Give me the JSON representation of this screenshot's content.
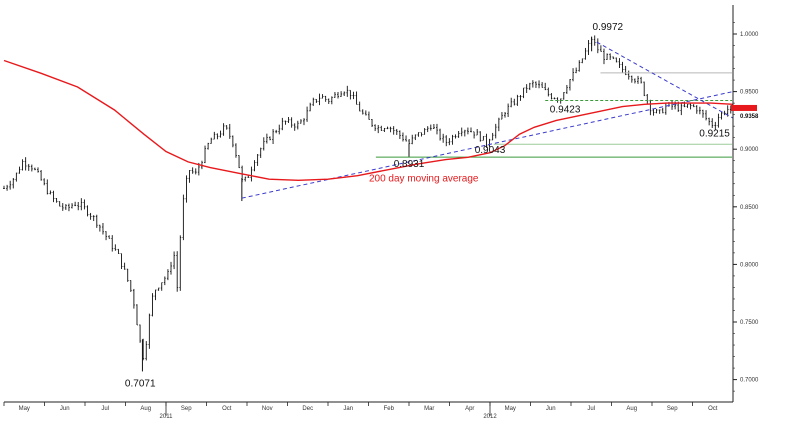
{
  "chart_data": {
    "type": "line",
    "title": "",
    "xlabel": "",
    "ylabel": "",
    "ylim": [
      0.67,
      1.03
    ],
    "y_ticks": [
      "1.0000",
      "0.9500",
      "0.9000",
      "0.8500",
      "0.8000",
      "0.7500",
      "0.7000"
    ],
    "x_tick_labels": [
      "May",
      "Jun",
      "Jul",
      "Aug",
      "Sep",
      "Oct",
      "Nov",
      "Dec",
      "Jan",
      "Feb",
      "Mar",
      "Apr",
      "May",
      "Jun",
      "Jul",
      "Aug",
      "Sep",
      "Oct"
    ],
    "year_labels": [
      "2011",
      "2012"
    ],
    "last_value_label": "0.9358",
    "grid": false,
    "series": [
      {
        "kind": "ohlc-close",
        "color": "#000000",
        "points": [
          [
            0.0,
            0.866
          ],
          [
            1.5,
            0.876
          ],
          [
            2.5,
            0.889
          ],
          [
            3.5,
            0.887
          ],
          [
            4.5,
            0.879
          ],
          [
            5.5,
            0.868
          ],
          [
            6.5,
            0.858
          ],
          [
            7.5,
            0.851
          ],
          [
            8.5,
            0.848
          ],
          [
            9.5,
            0.853
          ],
          [
            10.5,
            0.851
          ],
          [
            11.5,
            0.845
          ],
          [
            12.5,
            0.838
          ],
          [
            13.5,
            0.828
          ],
          [
            14.5,
            0.818
          ],
          [
            15.5,
            0.808
          ],
          [
            16.5,
            0.792
          ],
          [
            17.5,
            0.772
          ],
          [
            18.0,
            0.752
          ],
          [
            18.5,
            0.732
          ],
          [
            19.0,
            0.718
          ],
          [
            19.5,
            0.742
          ],
          [
            20.0,
            0.768
          ],
          [
            20.5,
            0.778
          ],
          [
            21.5,
            0.786
          ],
          [
            22.5,
            0.793
          ],
          [
            23.0,
            0.815
          ],
          [
            23.5,
            0.778
          ],
          [
            24.0,
            0.83
          ],
          [
            24.5,
            0.865
          ],
          [
            25.2,
            0.882
          ],
          [
            26.0,
            0.878
          ],
          [
            27.0,
            0.893
          ],
          [
            28.0,
            0.908
          ],
          [
            29.0,
            0.912
          ],
          [
            30.0,
            0.919
          ],
          [
            31.0,
            0.908
          ],
          [
            31.8,
            0.889
          ],
          [
            32.3,
            0.872
          ],
          [
            33.0,
            0.874
          ],
          [
            34.0,
            0.891
          ],
          [
            35.0,
            0.902
          ],
          [
            36.0,
            0.91
          ],
          [
            37.0,
            0.917
          ],
          [
            38.0,
            0.924
          ],
          [
            39.0,
            0.922
          ],
          [
            40.0,
            0.921
          ],
          [
            41.0,
            0.93
          ],
          [
            42.0,
            0.941
          ],
          [
            43.0,
            0.946
          ],
          [
            44.0,
            0.942
          ],
          [
            45.0,
            0.947
          ],
          [
            46.0,
            0.952
          ],
          [
            47.0,
            0.949
          ],
          [
            48.0,
            0.937
          ],
          [
            49.0,
            0.928
          ],
          [
            50.0,
            0.922
          ],
          [
            51.0,
            0.918
          ],
          [
            52.0,
            0.921
          ],
          [
            53.0,
            0.916
          ],
          [
            54.0,
            0.911
          ],
          [
            55.0,
            0.905
          ],
          [
            56.0,
            0.912
          ],
          [
            57.0,
            0.915
          ],
          [
            58.0,
            0.921
          ],
          [
            59.0,
            0.912
          ],
          [
            60.0,
            0.906
          ],
          [
            61.0,
            0.911
          ],
          [
            62.0,
            0.918
          ],
          [
            63.0,
            0.917
          ],
          [
            64.0,
            0.914
          ],
          [
            65.0,
            0.909
          ],
          [
            65.5,
            0.905
          ],
          [
            66.0,
            0.911
          ],
          [
            67.0,
            0.921
          ],
          [
            68.0,
            0.933
          ],
          [
            69.0,
            0.939
          ],
          [
            70.0,
            0.946
          ],
          [
            71.0,
            0.954
          ],
          [
            72.0,
            0.957
          ],
          [
            73.0,
            0.953
          ],
          [
            74.0,
            0.947
          ],
          [
            75.0,
            0.945
          ],
          [
            75.5,
            0.943
          ],
          [
            76.0,
            0.951
          ],
          [
            77.0,
            0.962
          ],
          [
            78.0,
            0.971
          ],
          [
            79.0,
            0.985
          ],
          [
            79.8,
            0.996
          ],
          [
            80.5,
            0.988
          ],
          [
            81.5,
            0.98
          ],
          [
            82.5,
            0.978
          ],
          [
            83.5,
            0.972
          ],
          [
            84.5,
            0.967
          ],
          [
            85.5,
            0.962
          ],
          [
            86.5,
            0.957
          ],
          [
            87.0,
            0.948
          ],
          [
            88.0,
            0.933
          ],
          [
            89.0,
            0.931
          ],
          [
            90.0,
            0.938
          ],
          [
            91.0,
            0.937
          ],
          [
            92.0,
            0.935
          ],
          [
            93.0,
            0.938
          ],
          [
            94.0,
            0.936
          ],
          [
            95.0,
            0.929
          ],
          [
            96.0,
            0.922
          ],
          [
            96.5,
            0.9215
          ],
          [
            97.0,
            0.928
          ],
          [
            98.0,
            0.934
          ],
          [
            99.0,
            0.9358
          ]
        ]
      },
      {
        "name": "200 day moving average",
        "color": "#e8191c",
        "points": [
          [
            0,
            0.977
          ],
          [
            5,
            0.966
          ],
          [
            10,
            0.954
          ],
          [
            15,
            0.934
          ],
          [
            19,
            0.913
          ],
          [
            22,
            0.898
          ],
          [
            25,
            0.889
          ],
          [
            28,
            0.884
          ],
          [
            32,
            0.879
          ],
          [
            36,
            0.874
          ],
          [
            40,
            0.873
          ],
          [
            44,
            0.874
          ],
          [
            48,
            0.877
          ],
          [
            52,
            0.882
          ],
          [
            56,
            0.887
          ],
          [
            60,
            0.891
          ],
          [
            63,
            0.893
          ],
          [
            66,
            0.897
          ],
          [
            68,
            0.903
          ],
          [
            70,
            0.913
          ],
          [
            72,
            0.919
          ],
          [
            75,
            0.925
          ],
          [
            78,
            0.929
          ],
          [
            81,
            0.933
          ],
          [
            84,
            0.937
          ],
          [
            87,
            0.939
          ],
          [
            90,
            0.94
          ],
          [
            93,
            0.94
          ],
          [
            96,
            0.94
          ],
          [
            99,
            0.939
          ]
        ]
      }
    ],
    "trendlines": [
      {
        "style": "dashed",
        "color": "#3b3bcc",
        "from": [
          32.3,
          0.8575
        ],
        "to": [
          99,
          0.95
        ]
      },
      {
        "style": "dashed",
        "color": "#3b3bcc",
        "from": [
          80.5,
          0.993
        ],
        "to": [
          99,
          0.927
        ]
      }
    ],
    "horizontal_levels": [
      {
        "value": 0.9423,
        "color": "#3a9a3a",
        "style": "dashed",
        "from_x": 73.5,
        "to_x": 99
      },
      {
        "value": 0.8931,
        "color": "#3a9a3a",
        "style": "solid",
        "from_x": 50.5,
        "to_x": 99
      },
      {
        "value": 0.9043,
        "color": "#9ccc9c",
        "style": "solid",
        "from_x": 66.5,
        "to_x": 99
      },
      {
        "value": 0.9663,
        "color": "#b8b8b8",
        "style": "solid",
        "from_x": 81.0,
        "to_x": 99
      }
    ],
    "annotations": [
      {
        "text": "0.9972",
        "x": 82.0,
        "y": 0.9972
      },
      {
        "text": "0.9423",
        "x": 76.2,
        "y": 0.9423
      },
      {
        "text": "0.9043",
        "x": 66.0,
        "y": 0.9043
      },
      {
        "text": "0.8931",
        "x": 55.0,
        "y": 0.8931
      },
      {
        "text": "0.9215",
        "x": 96.5,
        "y": 0.9215
      },
      {
        "text": "0.7071",
        "x": 18.5,
        "y": 0.7071
      },
      {
        "text": "200 day moving average",
        "x": 57.0,
        "y": 0.872
      }
    ]
  }
}
